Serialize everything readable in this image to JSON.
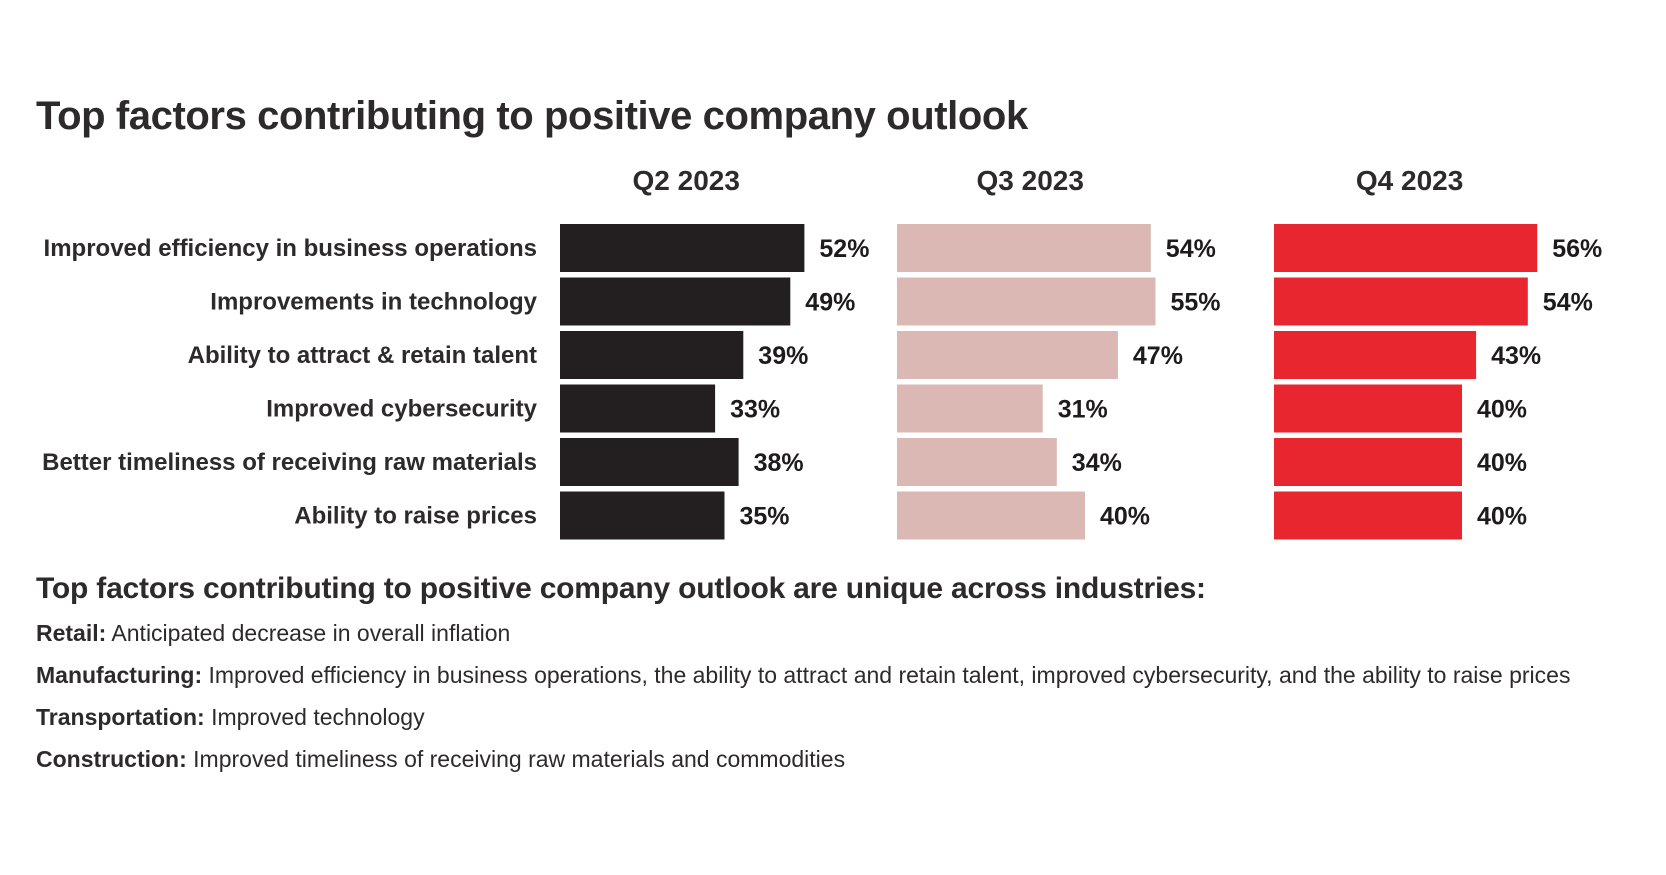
{
  "title": "Top factors contributing to positive company outlook",
  "chart_data": {
    "type": "bar",
    "orientation": "horizontal",
    "title": "Top factors contributing to positive company outlook",
    "categories": [
      "Improved efficiency in business operations",
      "Improvements in technology",
      "Ability to attract & retain talent",
      "Improved cybersecurity",
      "Better timeliness of receiving raw materials",
      "Ability to raise prices"
    ],
    "series": [
      {
        "name": "Q2 2023",
        "color": "#231f20",
        "values": [
          52,
          49,
          39,
          33,
          38,
          35
        ],
        "labels": [
          "52%",
          "49%",
          "39%",
          "33%",
          "38%",
          "35%"
        ]
      },
      {
        "name": "Q3 2023",
        "color": "#dbb8b3",
        "values": [
          54,
          55,
          47,
          31,
          34,
          40
        ],
        "labels": [
          "54%",
          "55%",
          "47%",
          "31%",
          "34%",
          "40%"
        ]
      },
      {
        "name": "Q4 2023",
        "color": "#e8262f",
        "values": [
          56,
          54,
          43,
          40,
          40,
          40
        ],
        "labels": [
          "56%",
          "54%",
          "43%",
          "40%",
          "40%",
          "40%"
        ]
      }
    ],
    "value_unit": "%",
    "layout": "small-multiples",
    "grid": false
  },
  "subtitle": "Top factors contributing to positive company outlook are unique across industries:",
  "industries": [
    {
      "name": "Retail:",
      "text": "Anticipated decrease in overall inflation"
    },
    {
      "name": "Manufacturing:",
      "text": "Improved efficiency in business operations, the ability to attract and retain talent, improved cybersecurity, and the ability to raise prices"
    },
    {
      "name": "Transportation:",
      "text": "Improved technology"
    },
    {
      "name": "Construction:",
      "text": "Improved timeliness of receiving raw materials and commodities"
    }
  ]
}
